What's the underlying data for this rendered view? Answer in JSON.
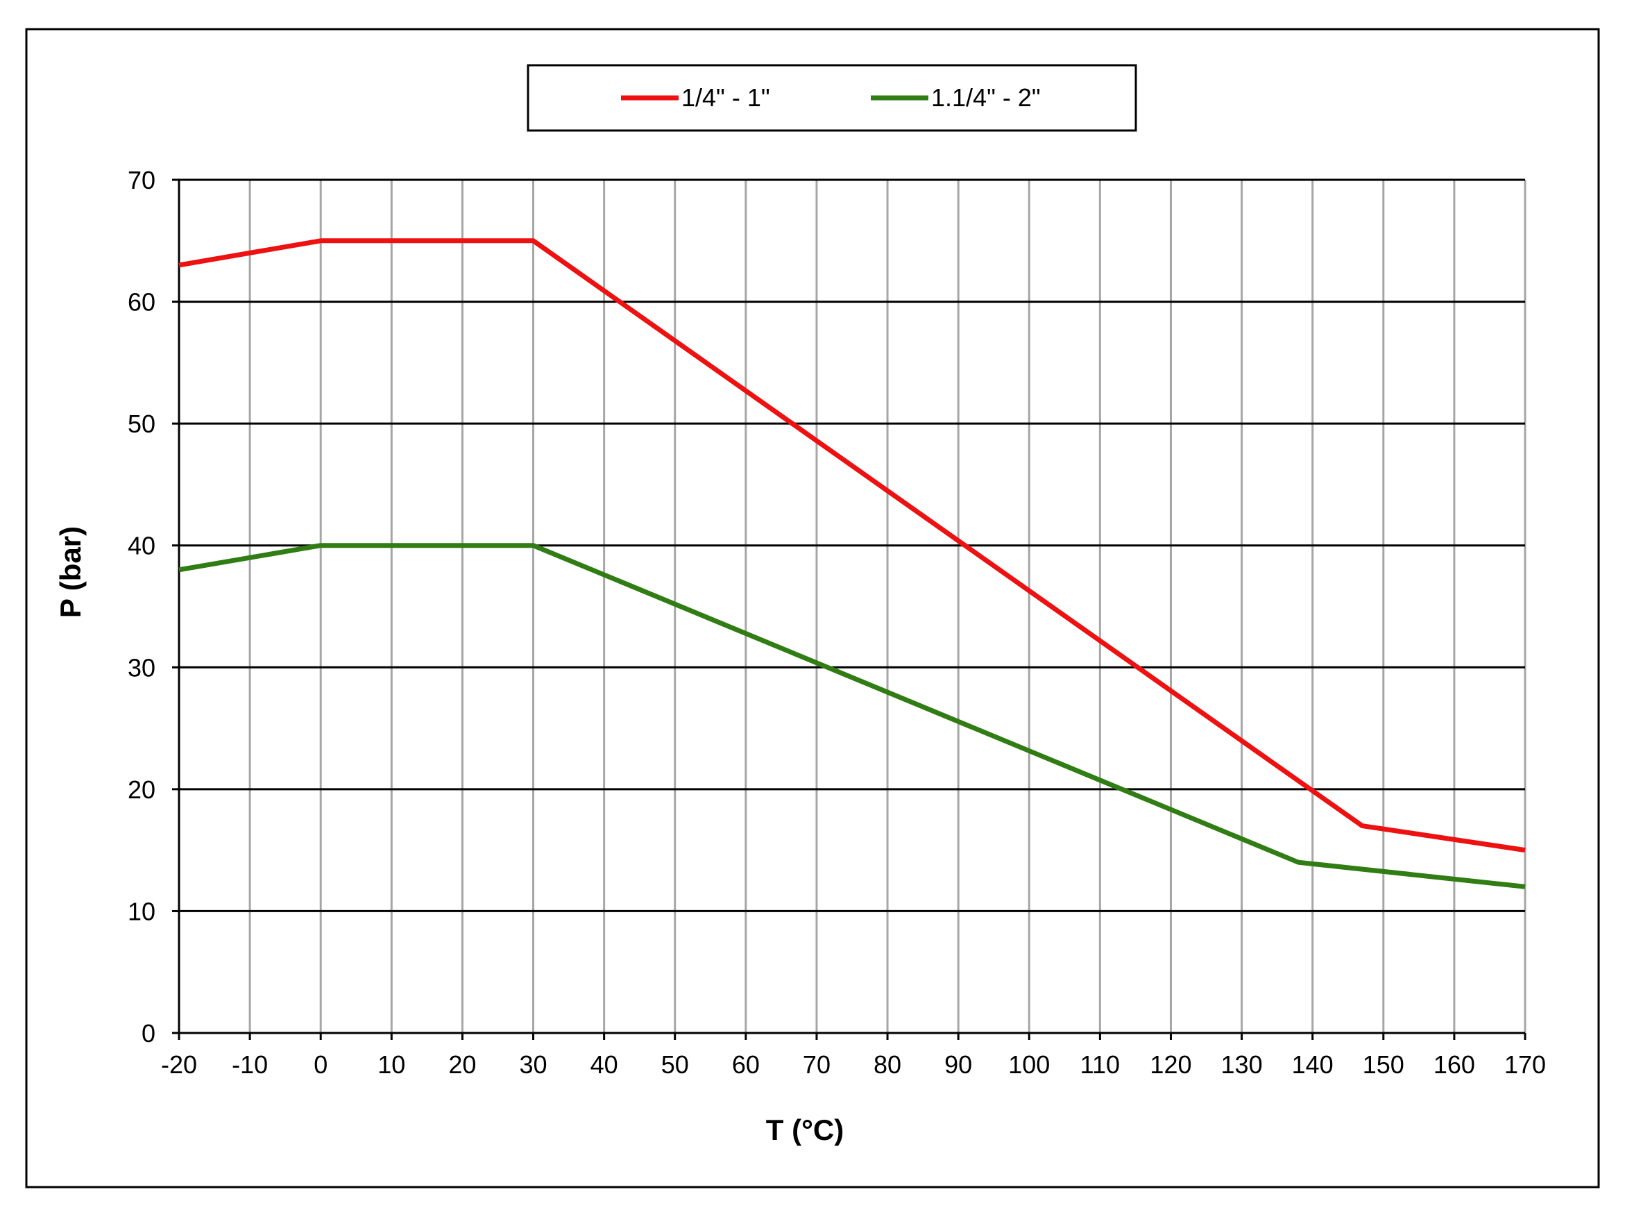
{
  "chart_data": {
    "type": "line",
    "title": "",
    "xlabel": "T (°C)",
    "ylabel": "P (bar)",
    "xlim": [
      -20,
      170
    ],
    "ylim": [
      0,
      70
    ],
    "x_ticks": [
      -20,
      -10,
      0,
      10,
      20,
      30,
      40,
      50,
      60,
      70,
      80,
      90,
      100,
      110,
      120,
      130,
      140,
      150,
      160,
      170
    ],
    "y_ticks": [
      0,
      10,
      20,
      30,
      40,
      50,
      60,
      70
    ],
    "vertical_grid": true,
    "horizontal_grid": true,
    "legend_position": "top-center",
    "series": [
      {
        "name": "1/4\" - 1\"",
        "color": "#ee1111",
        "x": [
          -20,
          0,
          30,
          147,
          170
        ],
        "y": [
          63,
          65,
          65,
          17,
          15
        ]
      },
      {
        "name": "1.1/4\" - 2\"",
        "color": "#2f7d13",
        "x": [
          -20,
          0,
          30,
          138,
          170
        ],
        "y": [
          38,
          40,
          40,
          14,
          12
        ]
      }
    ]
  }
}
